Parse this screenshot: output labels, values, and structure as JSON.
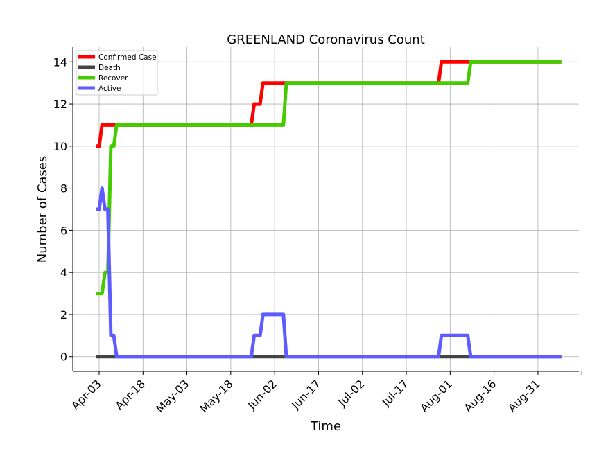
{
  "chart_data": {
    "type": "line",
    "title": "GREENLAND Coronavirus Count",
    "xlabel": "Time",
    "ylabel": "Number of Cases",
    "x_ticks": [
      "Apr-03",
      "Apr-18",
      "May-03",
      "May-18",
      "Jun-02",
      "Jun-17",
      "Jul-02",
      "Jul-17",
      "Aug-01",
      "Aug-16",
      "Aug-31"
    ],
    "y_ticks": [
      0,
      2,
      4,
      6,
      8,
      10,
      12,
      14
    ],
    "xlim": [
      "2020-03-25",
      "2020-09-14"
    ],
    "ylim": [
      -0.7,
      14.7
    ],
    "grid": true,
    "legend_position": "top-left",
    "series": [
      {
        "name": "Confirmed Case",
        "color": "#ff0000",
        "points": [
          [
            "2020-04-02",
            10
          ],
          [
            "2020-04-03",
            10
          ],
          [
            "2020-04-04",
            11
          ],
          [
            "2020-04-08",
            11
          ],
          [
            "2020-04-09",
            11
          ],
          [
            "2020-05-25",
            11
          ],
          [
            "2020-05-26",
            12
          ],
          [
            "2020-05-27",
            12
          ],
          [
            "2020-05-28",
            12
          ],
          [
            "2020-05-29",
            13
          ],
          [
            "2020-06-06",
            13
          ],
          [
            "2020-07-28",
            13
          ],
          [
            "2020-07-29",
            14
          ],
          [
            "2020-08-07",
            14
          ],
          [
            "2020-09-08",
            14
          ]
        ]
      },
      {
        "name": "Death",
        "color": "#444444",
        "points": [
          [
            "2020-04-02",
            0
          ],
          [
            "2020-09-08",
            0
          ]
        ]
      },
      {
        "name": "Recover",
        "color": "#44cc00",
        "points": [
          [
            "2020-04-02",
            3
          ],
          [
            "2020-04-04",
            3
          ],
          [
            "2020-04-05",
            4
          ],
          [
            "2020-04-06",
            4
          ],
          [
            "2020-04-07",
            10
          ],
          [
            "2020-04-08",
            10
          ],
          [
            "2020-04-09",
            11
          ],
          [
            "2020-05-25",
            11
          ],
          [
            "2020-06-05",
            11
          ],
          [
            "2020-06-06",
            13
          ],
          [
            "2020-07-28",
            13
          ],
          [
            "2020-08-07",
            13
          ],
          [
            "2020-08-08",
            14
          ],
          [
            "2020-09-08",
            14
          ]
        ]
      },
      {
        "name": "Active",
        "color": "#5c5cff",
        "points": [
          [
            "2020-04-02",
            7
          ],
          [
            "2020-04-03",
            7
          ],
          [
            "2020-04-04",
            8
          ],
          [
            "2020-04-05",
            7
          ],
          [
            "2020-04-06",
            7
          ],
          [
            "2020-04-07",
            1
          ],
          [
            "2020-04-08",
            1
          ],
          [
            "2020-04-09",
            0
          ],
          [
            "2020-05-25",
            0
          ],
          [
            "2020-05-26",
            1
          ],
          [
            "2020-05-27",
            1
          ],
          [
            "2020-05-28",
            1
          ],
          [
            "2020-05-29",
            2
          ],
          [
            "2020-06-05",
            2
          ],
          [
            "2020-06-06",
            0
          ],
          [
            "2020-07-28",
            0
          ],
          [
            "2020-07-29",
            1
          ],
          [
            "2020-08-07",
            1
          ],
          [
            "2020-08-08",
            0
          ],
          [
            "2020-09-08",
            0
          ]
        ]
      }
    ]
  }
}
